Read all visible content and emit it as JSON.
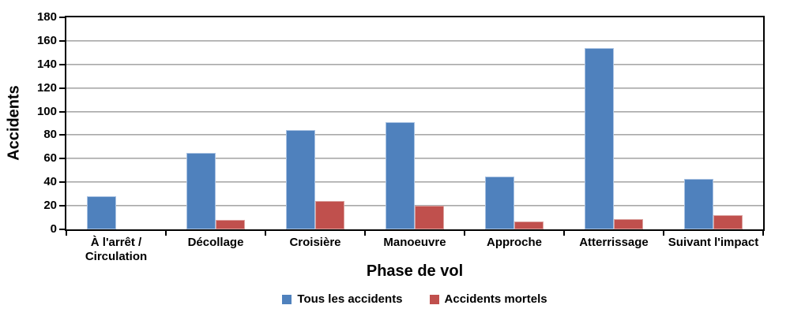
{
  "chart_data": {
    "type": "bar",
    "title": "",
    "categories": [
      "À l'arrêt / Circulation",
      "Décollage",
      "Croisière",
      "Manoeuvre",
      "Approche",
      "Atterrissage",
      "Suivant l'impact"
    ],
    "series": [
      {
        "name": "Tous les accidents",
        "values": [
          28,
          65,
          84,
          91,
          45,
          154,
          43
        ],
        "color": "#4F81BD",
        "border_color": "#A9C2E2"
      },
      {
        "name": "Accidents mortels",
        "values": [
          0,
          8,
          24,
          20,
          7,
          9,
          12
        ],
        "color": "#C0504D",
        "border_color": "#DBA29F"
      }
    ],
    "xlabel": "Phase de vol",
    "ylabel": "Accidents",
    "ylim": [
      0,
      180
    ],
    "ytick_step": 20,
    "grid": true,
    "legend_position": "bottom"
  },
  "style_colors": {
    "gridline_dark": "#999999",
    "gridline_light": "#d9d9d9",
    "axis": "#000000",
    "text": "#000000",
    "background": "#FFFFFF"
  }
}
